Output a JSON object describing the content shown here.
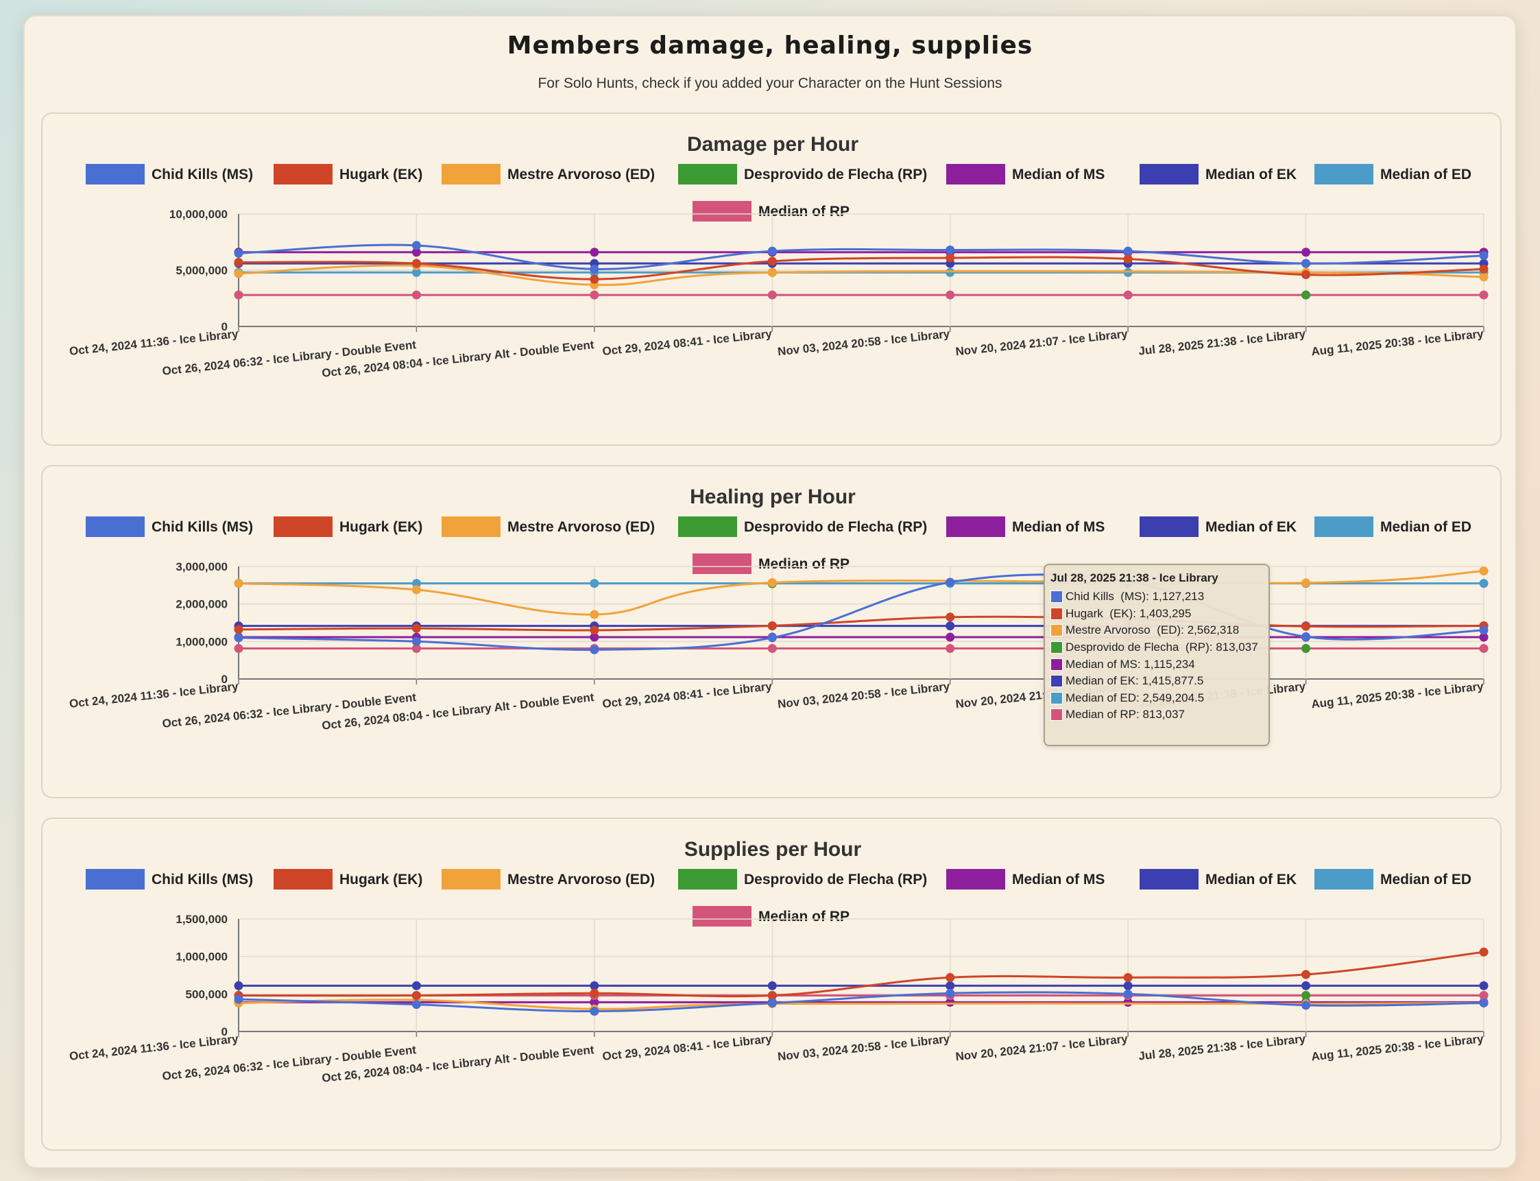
{
  "header": {
    "title": "Members damage, healing, supplies",
    "subtitle": "For Solo Hunts, check if you added your Character on the Hunt Sessions"
  },
  "colors": {
    "chid_kills": "#4a6fd3",
    "hugark": "#cf4527",
    "mestre_arvoroso": "#f2a23a",
    "desprovido": "#3c9a33",
    "median_ms": "#8e1f9c",
    "median_ek": "#3c3fb0",
    "median_ed": "#4b9cc9",
    "median_rp": "#d4557b"
  },
  "chart_data": [
    {
      "type": "line",
      "title": "Damage per Hour",
      "x": [
        "Oct 24, 2024 11:36 - Ice Library",
        "Oct 26, 2024 06:32 - Ice Library - Double Event",
        "Oct 26, 2024 08:04 - Ice Library Alt - Double Event",
        "Oct 29, 2024 08:41 - Ice Library",
        "Nov 03, 2024 20:58 - Ice Library",
        "Nov 20, 2024 21:07 - Ice Library",
        "Jul 28, 2025 21:38 - Ice Library",
        "Aug 11, 2025 20:38 - Ice Library"
      ],
      "ylim": [
        0,
        10000000
      ],
      "yticks": [
        0,
        5000000,
        10000000
      ],
      "ytick_labels": [
        "0",
        "5,000,000",
        "10,000,000"
      ],
      "legend": "top",
      "grid": true,
      "series": [
        {
          "name": "Chid Kills  (MS)",
          "color_key": "chid_kills",
          "values": [
            6500000,
            7200000,
            5100000,
            6700000,
            6800000,
            6700000,
            5600000,
            6300000
          ]
        },
        {
          "name": "Hugark  (EK)",
          "color_key": "hugark",
          "values": [
            5700000,
            5600000,
            4200000,
            5800000,
            6100000,
            6000000,
            4600000,
            5100000
          ]
        },
        {
          "name": "Mestre Arvoroso  (ED)",
          "color_key": "mestre_arvoroso",
          "values": [
            4700000,
            5400000,
            3700000,
            4800000,
            null,
            null,
            4800000,
            4400000
          ]
        },
        {
          "name": "Desprovido de Flecha  (RP)",
          "color_key": "desprovido",
          "values": [
            null,
            null,
            null,
            4800000,
            null,
            null,
            2800000,
            null
          ]
        },
        {
          "name": "Median of MS",
          "color_key": "median_ms",
          "values": [
            6600000,
            6600000,
            6600000,
            6600000,
            6600000,
            6600000,
            6600000,
            6600000
          ]
        },
        {
          "name": "Median of EK",
          "color_key": "median_ek",
          "values": [
            5600000,
            5600000,
            5600000,
            5600000,
            5600000,
            5600000,
            5600000,
            5600000
          ]
        },
        {
          "name": "Median of ED",
          "color_key": "median_ed",
          "values": [
            4800000,
            4800000,
            4800000,
            4800000,
            4800000,
            4800000,
            4800000,
            4800000
          ]
        },
        {
          "name": "Median of RP",
          "color_key": "median_rp",
          "values": [
            2800000,
            2800000,
            2800000,
            2800000,
            2800000,
            2800000,
            2800000,
            2800000
          ]
        }
      ]
    },
    {
      "type": "line",
      "title": "Healing per Hour",
      "x": [
        "Oct 24, 2024 11:36 - Ice Library",
        "Oct 26, 2024 06:32 - Ice Library - Double Event",
        "Oct 26, 2024 08:04 - Ice Library Alt - Double Event",
        "Oct 29, 2024 08:41 - Ice Library",
        "Nov 03, 2024 20:58 - Ice Library",
        "Nov 20, 2024 21:07 - Ice Library",
        "Jul 28, 2025 21:38 - Ice Library",
        "Aug 11, 2025 20:38 - Ice Library"
      ],
      "ylim": [
        0,
        3000000
      ],
      "yticks": [
        0,
        1000000,
        2000000,
        3000000
      ],
      "ytick_labels": [
        "0",
        "1,000,000",
        "2,000,000",
        "3,000,000"
      ],
      "legend": "top",
      "grid": true,
      "series": [
        {
          "name": "Chid Kills  (MS)",
          "color_key": "chid_kills",
          "values": [
            1100000,
            1000000,
            780000,
            1100000,
            2580000,
            2600000,
            1127213,
            1300000
          ]
        },
        {
          "name": "Hugark  (EK)",
          "color_key": "hugark",
          "values": [
            1320000,
            1350000,
            1300000,
            1420000,
            1650000,
            1600000,
            1403295,
            1420000
          ]
        },
        {
          "name": "Mestre Arvoroso  (ED)",
          "color_key": "mestre_arvoroso",
          "values": [
            2550000,
            2380000,
            1720000,
            2570000,
            null,
            null,
            2562318,
            2880000
          ]
        },
        {
          "name": "Desprovido de Flecha  (RP)",
          "color_key": "desprovido",
          "values": [
            null,
            null,
            null,
            2540000,
            null,
            null,
            813037,
            null
          ]
        },
        {
          "name": "Median of MS",
          "color_key": "median_ms",
          "values": [
            1115234,
            1115234,
            1115234,
            1115234,
            1115234,
            1115234,
            1115234,
            1115234
          ]
        },
        {
          "name": "Median of EK",
          "color_key": "median_ek",
          "values": [
            1415877.5,
            1415877.5,
            1415877.5,
            1415877.5,
            1415877.5,
            1415877.5,
            1415877.5,
            1415877.5
          ]
        },
        {
          "name": "Median of ED",
          "color_key": "median_ed",
          "values": [
            2549204.5,
            2549204.5,
            2549204.5,
            2549204.5,
            2549204.5,
            2549204.5,
            2549204.5,
            2549204.5
          ]
        },
        {
          "name": "Median of RP",
          "color_key": "median_rp",
          "values": [
            813037,
            813037,
            813037,
            813037,
            813037,
            813037,
            813037,
            813037
          ]
        }
      ],
      "tooltip": {
        "title": "Jul 28, 2025 21:38 - Ice Library",
        "rows": [
          {
            "color_key": "chid_kills",
            "text": "Chid Kills  (MS): 1,127,213"
          },
          {
            "color_key": "hugark",
            "text": "Hugark  (EK): 1,403,295"
          },
          {
            "color_key": "mestre_arvoroso",
            "text": "Mestre Arvoroso  (ED): 2,562,318"
          },
          {
            "color_key": "desprovido",
            "text": "Desprovido de Flecha  (RP): 813,037"
          },
          {
            "color_key": "median_ms",
            "text": "Median of MS: 1,115,234"
          },
          {
            "color_key": "median_ek",
            "text": "Median of EK: 1,415,877.5"
          },
          {
            "color_key": "median_ed",
            "text": "Median of ED: 2,549,204.5"
          },
          {
            "color_key": "median_rp",
            "text": "Median of RP: 813,037"
          }
        ]
      }
    },
    {
      "type": "line",
      "title": "Supplies per Hour",
      "x": [
        "Oct 24, 2024 11:36 - Ice Library",
        "Oct 26, 2024 06:32 - Ice Library - Double Event",
        "Oct 26, 2024 08:04 - Ice Library Alt - Double Event",
        "Oct 29, 2024 08:41 - Ice Library",
        "Nov 03, 2024 20:58 - Ice Library",
        "Nov 20, 2024 21:07 - Ice Library",
        "Jul 28, 2025 21:38 - Ice Library",
        "Aug 11, 2025 20:38 - Ice Library"
      ],
      "ylim": [
        0,
        1500000
      ],
      "yticks": [
        0,
        500000,
        1000000,
        1500000
      ],
      "ytick_labels": [
        "0",
        "500,000",
        "1,000,000",
        "1,500,000"
      ],
      "legend": "top",
      "grid": true,
      "series": [
        {
          "name": "Chid Kills  (MS)",
          "color_key": "chid_kills",
          "values": [
            430000,
            360000,
            270000,
            380000,
            510000,
            500000,
            350000,
            380000
          ]
        },
        {
          "name": "Hugark  (EK)",
          "color_key": "hugark",
          "values": [
            480000,
            480000,
            510000,
            480000,
            720000,
            720000,
            760000,
            1060000
          ]
        },
        {
          "name": "Mestre Arvoroso  (ED)",
          "color_key": "mestre_arvoroso",
          "values": [
            380000,
            420000,
            300000,
            370000,
            null,
            null,
            370000,
            380000
          ]
        },
        {
          "name": "Desprovido de Flecha  (RP)",
          "color_key": "desprovido",
          "values": [
            null,
            null,
            null,
            480000,
            null,
            null,
            480000,
            null
          ]
        },
        {
          "name": "Median of MS",
          "color_key": "median_ms",
          "values": [
            390000,
            390000,
            390000,
            390000,
            390000,
            390000,
            390000,
            390000
          ]
        },
        {
          "name": "Median of EK",
          "color_key": "median_ek",
          "values": [
            610000,
            610000,
            610000,
            610000,
            610000,
            610000,
            610000,
            610000
          ]
        },
        {
          "name": "Median of ED",
          "color_key": "median_ed",
          "values": [
            480000,
            480000,
            480000,
            480000,
            480000,
            480000,
            480000,
            480000
          ]
        },
        {
          "name": "Median of RP",
          "color_key": "median_rp",
          "values": [
            480000,
            480000,
            480000,
            480000,
            480000,
            480000,
            480000,
            480000
          ]
        }
      ]
    }
  ]
}
